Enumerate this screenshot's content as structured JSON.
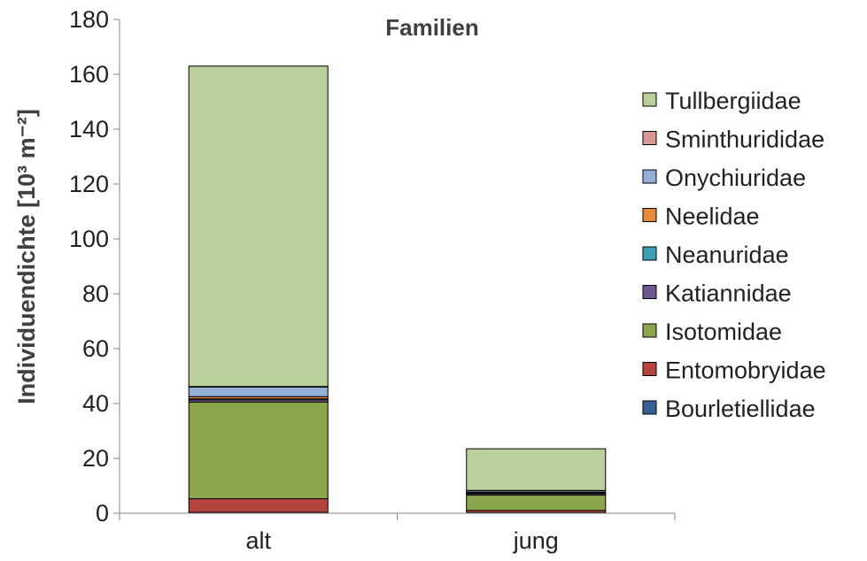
{
  "chart_data": {
    "type": "bar",
    "stacked": true,
    "title": "Familien",
    "xlabel": "",
    "ylabel": "Individuendichte [10³ m⁻²]",
    "ylim": [
      0,
      180
    ],
    "yticks": [
      0,
      20,
      40,
      60,
      80,
      100,
      120,
      140,
      160,
      180
    ],
    "grid": false,
    "legend_position": "right",
    "categories": [
      "alt",
      "jung"
    ],
    "series": [
      {
        "name": "Bourletiellidae",
        "color": "#376092",
        "values": [
          0.3,
          0.2
        ]
      },
      {
        "name": "Entomobryidae",
        "color": "#B5443F",
        "values": [
          5.0,
          0.8
        ]
      },
      {
        "name": "Isotomidae",
        "color": "#8BA64B",
        "values": [
          35.2,
          5.6
        ]
      },
      {
        "name": "Katiannidae",
        "color": "#71578F",
        "values": [
          0.8,
          0.5
        ]
      },
      {
        "name": "Neanuridae",
        "color": "#3EA0B7",
        "values": [
          0.4,
          0.2
        ]
      },
      {
        "name": "Neelidae",
        "color": "#E7893A",
        "values": [
          0.8,
          0.3
        ]
      },
      {
        "name": "Onychiuridae",
        "color": "#95B0D6",
        "values": [
          3.5,
          0.6
        ]
      },
      {
        "name": "Sminthurididae",
        "color": "#D99795",
        "values": [
          0.2,
          0.1
        ]
      },
      {
        "name": "Tullbergiidae",
        "color": "#BBD09A",
        "values": [
          116.8,
          15.2
        ]
      }
    ]
  }
}
